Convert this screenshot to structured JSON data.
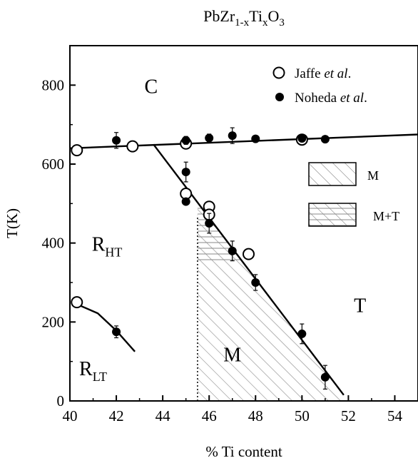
{
  "chart_data": {
    "type": "scatter",
    "title": {
      "base": "PbZr",
      "sub1": "1-x",
      "mid": "Ti",
      "sub2": "x",
      "end": "O",
      "sub3": "3"
    },
    "xlabel": "% Ti content",
    "ylabel": "T(K)",
    "xlim": [
      40,
      55
    ],
    "ylim": [
      0,
      900
    ],
    "xticks": [
      40,
      42,
      44,
      46,
      48,
      50,
      52,
      54
    ],
    "yticks": [
      0,
      200,
      400,
      600,
      800
    ],
    "grid": false,
    "series": [
      {
        "name_main": "Jaffe ",
        "name_em": "et al",
        "name_end": ".",
        "marker": "open-circle",
        "points": [
          [
            40.3,
            635
          ],
          [
            42.7,
            645
          ],
          [
            45,
            652
          ],
          [
            45,
            525
          ],
          [
            46,
            492
          ],
          [
            46,
            472
          ],
          [
            47.7,
            372
          ],
          [
            50,
            662
          ],
          [
            40.3,
            250
          ]
        ]
      },
      {
        "name_main": "Noheda ",
        "name_em": "et al",
        "name_end": ".",
        "marker": "filled-circle",
        "points": [
          {
            "x": 42,
            "y": 660,
            "err": 20
          },
          {
            "x": 45,
            "y": 660,
            "err": 10
          },
          {
            "x": 46,
            "y": 666,
            "err": 10
          },
          {
            "x": 47,
            "y": 672,
            "err": 20
          },
          {
            "x": 48,
            "y": 664,
            "err": 8
          },
          {
            "x": 50,
            "y": 665,
            "err": 8
          },
          {
            "x": 51,
            "y": 663,
            "err": 8
          },
          {
            "x": 45,
            "y": 580,
            "err": 25
          },
          {
            "x": 45,
            "y": 505,
            "err": 8
          },
          {
            "x": 46,
            "y": 450,
            "err": 25
          },
          {
            "x": 47,
            "y": 380,
            "err": 25
          },
          {
            "x": 48,
            "y": 300,
            "err": 20
          },
          {
            "x": 50,
            "y": 170,
            "err": 25
          },
          {
            "x": 51,
            "y": 60,
            "err": 30
          },
          {
            "x": 42,
            "y": 175,
            "err": 15
          }
        ]
      }
    ],
    "boundaries": [
      {
        "name": "C-boundary",
        "points": [
          [
            40,
            640
          ],
          [
            55,
            675
          ]
        ]
      },
      {
        "name": "T-M-boundary",
        "points": [
          [
            43.6,
            650
          ],
          [
            51.8,
            15
          ]
        ]
      },
      {
        "name": "R-boundary",
        "points": [
          [
            40.3,
            245
          ],
          [
            41.2,
            222
          ],
          [
            42,
            178
          ],
          [
            42.8,
            125
          ]
        ]
      },
      {
        "name": "M-dotted-boundary",
        "points": [
          [
            45.5,
            0
          ],
          [
            45.5,
            470
          ]
        ],
        "style": "dotted"
      }
    ],
    "legend": {
      "position": "top-right"
    },
    "hatch_legend": [
      {
        "label": "M",
        "pattern": "diagonal"
      },
      {
        "label": "M+T",
        "pattern": "diagonal+horizontal"
      }
    ],
    "region_labels": [
      {
        "text": "C",
        "x": 43.5,
        "y": 780
      },
      {
        "main": "R",
        "sub": "HT",
        "x": 41.6,
        "y": 380
      },
      {
        "main": "R",
        "sub": "LT",
        "x": 41.0,
        "y": 65
      },
      {
        "text": "T",
        "x": 52.5,
        "y": 225
      },
      {
        "text": "M",
        "x": 47.0,
        "y": 100
      }
    ]
  }
}
